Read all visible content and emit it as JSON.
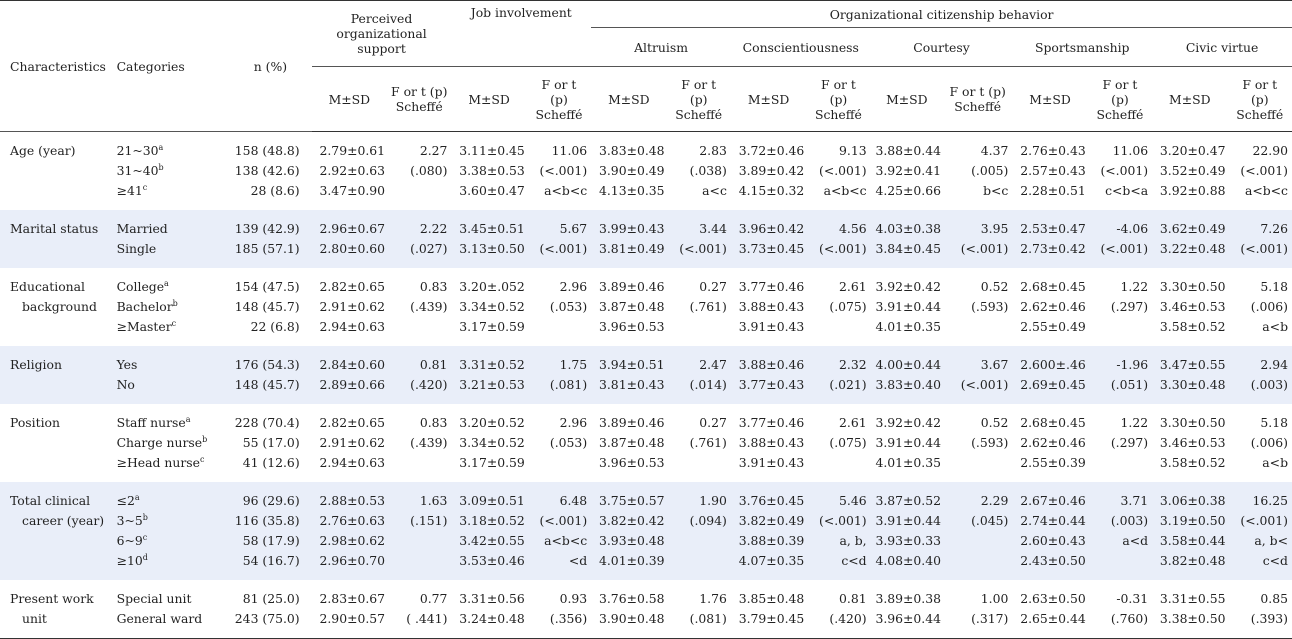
{
  "header": {
    "characteristics": "Characteristics",
    "categories": "Categories",
    "n_pct": "n (%)",
    "pos_line1": "Perceived",
    "pos_line2": "organizational",
    "pos_line3": "support",
    "job": "Job involvement",
    "ocb": "Organizational citizenship behavior",
    "altruism": "Altruism",
    "conscientiousness": "Conscientiousness",
    "courtesy": "Courtesy",
    "sportsmanship": "Sportsmanship",
    "civic": "Civic virtue",
    "msd": "M±SD",
    "f_a": "F or t (p)",
    "f_a2": "Scheffé",
    "f_b1": "F or t",
    "f_b2": "(p)",
    "f_b3": "Scheffé"
  },
  "rows": [
    {
      "char": [
        "Age (year)"
      ],
      "cats": [
        "21~30",
        "31~40",
        "≥41"
      ],
      "sups": [
        "a",
        "b",
        "c"
      ],
      "n": [
        "158 (48.8)",
        "138 (42.6)",
        "28 (8.6)"
      ],
      "pos_m": [
        "2.79±0.61",
        "2.92±0.63",
        "3.47±0.90"
      ],
      "pos_f": [
        "2.27",
        "(.080)",
        ""
      ],
      "job_m": [
        "3.11±0.45",
        "3.38±0.53",
        "3.60±0.47"
      ],
      "job_f": [
        "11.06",
        "(<.001)",
        "a<b<c"
      ],
      "alt_m": [
        "3.83±0.48",
        "3.90±0.49",
        "4.13±0.35"
      ],
      "alt_f": [
        "2.83",
        "(.038)",
        "a<c"
      ],
      "con_m": [
        "3.72±0.46",
        "3.89±0.42",
        "4.15±0.32"
      ],
      "con_f": [
        "9.13",
        "(<.001)",
        "a<b<c"
      ],
      "cou_m": [
        "3.88±0.44",
        "3.92±0.41",
        "4.25±0.66"
      ],
      "cou_f": [
        "4.37",
        "(.005)",
        "b<c"
      ],
      "spo_m": [
        "2.76±0.43",
        "2.57±0.43",
        "2.28±0.51"
      ],
      "spo_f": [
        "11.06",
        "(<.001)",
        "c<b<a"
      ],
      "civ_m": [
        "3.20±0.47",
        "3.52±0.49",
        "3.92±0.88"
      ],
      "civ_f": [
        "22.90",
        "(<.001)",
        "a<b<c"
      ]
    },
    {
      "char": [
        "Marital status"
      ],
      "cats": [
        "Married",
        "Single"
      ],
      "sups": [
        "",
        ""
      ],
      "n": [
        "139 (42.9)",
        "185 (57.1)"
      ],
      "pos_m": [
        "2.96±0.67",
        "2.80±0.60"
      ],
      "pos_f": [
        "2.22",
        "(.027)"
      ],
      "job_m": [
        "3.45±0.51",
        "3.13±0.50"
      ],
      "job_f": [
        "5.67",
        "(<.001)"
      ],
      "alt_m": [
        "3.99±0.43",
        "3.81±0.49"
      ],
      "alt_f": [
        "3.44",
        "(<.001)"
      ],
      "con_m": [
        "3.96±0.42",
        "3.73±0.45"
      ],
      "con_f": [
        "4.56",
        "(<.001)"
      ],
      "cou_m": [
        "4.03±0.38",
        "3.84±0.45"
      ],
      "cou_f": [
        "3.95",
        "(<.001)"
      ],
      "spo_m": [
        "2.53±0.47",
        "2.73±0.42"
      ],
      "spo_f": [
        "-4.06",
        "(<.001)"
      ],
      "civ_m": [
        "3.62±0.49",
        "3.22±0.48"
      ],
      "civ_f": [
        "7.26",
        "(<.001)"
      ]
    },
    {
      "char": [
        "Educational",
        "background"
      ],
      "cats": [
        "College",
        "Bachelor",
        "≥Master"
      ],
      "sups": [
        "a",
        "b",
        "c"
      ],
      "n": [
        "154 (47.5)",
        "148 (45.7)",
        "22 (6.8)"
      ],
      "pos_m": [
        "2.82±0.65",
        "2.91±0.62",
        "2.94±0.63"
      ],
      "pos_f": [
        "0.83",
        "(.439)",
        ""
      ],
      "job_m": [
        "3.20±.052",
        "3.34±0.52",
        "3.17±0.59"
      ],
      "job_f": [
        "2.96",
        "(.053)",
        ""
      ],
      "alt_m": [
        "3.89±0.46",
        "3.87±0.48",
        "3.96±0.53"
      ],
      "alt_f": [
        "0.27",
        "(.761)",
        ""
      ],
      "con_m": [
        "3.77±0.46",
        "3.88±0.43",
        "3.91±0.43"
      ],
      "con_f": [
        "2.61",
        "(.075)",
        ""
      ],
      "cou_m": [
        "3.92±0.42",
        "3.91±0.44",
        "4.01±0.35"
      ],
      "cou_f": [
        "0.52",
        "(.593)",
        ""
      ],
      "spo_m": [
        "2.68±0.45",
        "2.62±0.46",
        "2.55±0.49"
      ],
      "spo_f": [
        "1.22",
        "(.297)",
        ""
      ],
      "civ_m": [
        "3.30±0.50",
        "3.46±0.53",
        "3.58±0.52"
      ],
      "civ_f": [
        "5.18",
        "(.006)",
        "a<b"
      ]
    },
    {
      "char": [
        "Religion"
      ],
      "cats": [
        "Yes",
        "No"
      ],
      "sups": [
        "",
        ""
      ],
      "n": [
        "176 (54.3)",
        "148 (45.7)"
      ],
      "pos_m": [
        "2.84±0.60",
        "2.89±0.66"
      ],
      "pos_f": [
        "0.81",
        "(.420)"
      ],
      "job_m": [
        "3.31±0.52",
        "3.21±0.53"
      ],
      "job_f": [
        "1.75",
        "(.081)"
      ],
      "alt_m": [
        "3.94±0.51",
        "3.81±0.43"
      ],
      "alt_f": [
        "2.47",
        "(.014)"
      ],
      "con_m": [
        "3.88±0.46",
        "3.77±0.43"
      ],
      "con_f": [
        "2.32",
        "(.021)"
      ],
      "cou_m": [
        "4.00±0.44",
        "3.83±0.40"
      ],
      "cou_f": [
        "3.67",
        "(<.001)"
      ],
      "spo_m": [
        "2.600±.46",
        "2.69±0.45"
      ],
      "spo_f": [
        "-1.96",
        "(.051)"
      ],
      "civ_m": [
        "3.47±0.55",
        "3.30±0.48"
      ],
      "civ_f": [
        "2.94",
        "(.003)"
      ]
    },
    {
      "char": [
        "Position"
      ],
      "cats": [
        "Staff nurse",
        "Charge nurse",
        "≥Head nurse"
      ],
      "sups": [
        "a",
        "b",
        "c"
      ],
      "n": [
        "228 (70.4)",
        "55 (17.0)",
        "41 (12.6)"
      ],
      "pos_m": [
        "2.82±0.65",
        "2.91±0.62",
        "2.94±0.63"
      ],
      "pos_f": [
        "0.83",
        "(.439)",
        ""
      ],
      "job_m": [
        "3.20±0.52",
        "3.34±0.52",
        "3.17±0.59"
      ],
      "job_f": [
        "2.96",
        "(.053)",
        ""
      ],
      "alt_m": [
        "3.89±0.46",
        "3.87±0.48",
        "3.96±0.53"
      ],
      "alt_f": [
        "0.27",
        "(.761)",
        ""
      ],
      "con_m": [
        "3.77±0.46",
        "3.88±0.43",
        "3.91±0.43"
      ],
      "con_f": [
        "2.61",
        "(.075)",
        ""
      ],
      "cou_m": [
        "3.92±0.42",
        "3.91±0.44",
        "4.01±0.35"
      ],
      "cou_f": [
        "0.52",
        "(.593)",
        ""
      ],
      "spo_m": [
        "2.68±0.45",
        "2.62±0.46",
        "2.55±0.39"
      ],
      "spo_f": [
        "1.22",
        "(.297)",
        ""
      ],
      "civ_m": [
        "3.30±0.50",
        "3.46±0.53",
        "3.58±0.52"
      ],
      "civ_f": [
        "5.18",
        "(.006)",
        "a<b"
      ]
    },
    {
      "char": [
        "Total clinical",
        "career (year)"
      ],
      "cats": [
        "≤2",
        "3~5",
        "6~9",
        "≥10"
      ],
      "sups": [
        "a",
        "b",
        "c",
        "d"
      ],
      "n": [
        "96 (29.6)",
        "116 (35.8)",
        "58 (17.9)",
        "54 (16.7)"
      ],
      "pos_m": [
        "2.88±0.53",
        "2.76±0.63",
        "2.98±0.62",
        "2.96±0.70"
      ],
      "pos_f": [
        "1.63",
        "(.151)",
        "",
        ""
      ],
      "job_m": [
        "3.09±0.51",
        "3.18±0.52",
        "3.42±0.55",
        "3.53±0.46"
      ],
      "job_f": [
        "6.48",
        "(<.001)",
        "a<b<c",
        "<d"
      ],
      "alt_m": [
        "3.75±0.57",
        "3.82±0.42",
        "3.93±0.48",
        "4.01±0.39"
      ],
      "alt_f": [
        "1.90",
        "(.094)",
        "",
        ""
      ],
      "con_m": [
        "3.76±0.45",
        "3.82±0.49",
        "3.88±0.39",
        "4.07±0.35"
      ],
      "con_f": [
        "5.46",
        "(<.001)",
        "a, b,",
        "c<d"
      ],
      "cou_m": [
        "3.87±0.52",
        "3.91±0.44",
        "3.93±0.33",
        "4.08±0.40"
      ],
      "cou_f": [
        "2.29",
        "(.045)",
        "",
        ""
      ],
      "spo_m": [
        "2.67±0.46",
        "2.74±0.44",
        "2.60±0.43",
        "2.43±0.50"
      ],
      "spo_f": [
        "3.71",
        "(.003)",
        "a<d",
        ""
      ],
      "civ_m": [
        "3.06±0.38",
        "3.19±0.50",
        "3.58±0.44",
        "3.82±0.48"
      ],
      "civ_f": [
        "16.25",
        "(<.001)",
        "a, b<",
        "c<d"
      ]
    },
    {
      "char": [
        "Present work",
        "unit"
      ],
      "cats": [
        "Special unit",
        "General ward"
      ],
      "sups": [
        "",
        ""
      ],
      "n": [
        "81 (25.0)",
        "243 (75.0)"
      ],
      "pos_m": [
        "2.83±0.67",
        "2.90±0.57"
      ],
      "pos_f": [
        "0.77",
        "( .441)"
      ],
      "job_m": [
        "3.31±0.56",
        "3.24±0.48"
      ],
      "job_f": [
        "0.93",
        "(.356)"
      ],
      "alt_m": [
        "3.76±0.58",
        "3.90±0.48"
      ],
      "alt_f": [
        "1.76",
        "(.081)"
      ],
      "con_m": [
        "3.85±0.48",
        "3.79±0.45"
      ],
      "con_f": [
        "0.81",
        "(.420)"
      ],
      "cou_m": [
        "3.89±0.38",
        "3.96±0.44"
      ],
      "cou_f": [
        "1.00",
        "(.317)"
      ],
      "spo_m": [
        "2.63±0.50",
        "2.65±0.44"
      ],
      "spo_f": [
        "-0.31",
        "(.760)"
      ],
      "civ_m": [
        "3.31±0.55",
        "3.38±0.50"
      ],
      "civ_f": [
        "0.85",
        "(.393)"
      ]
    }
  ]
}
